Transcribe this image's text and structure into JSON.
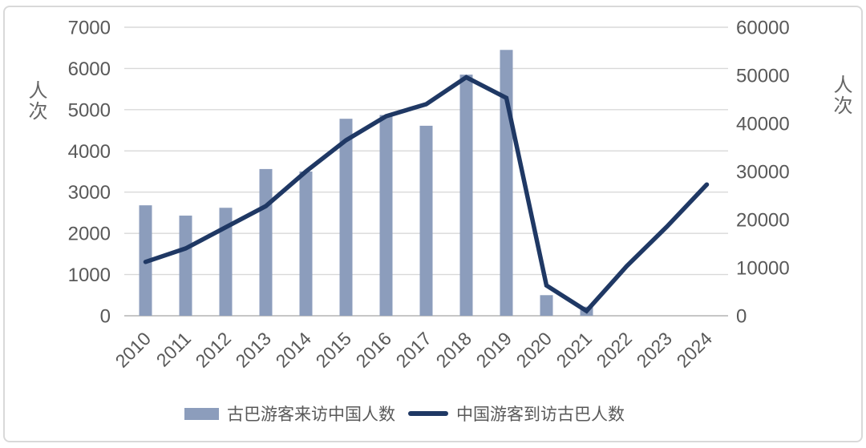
{
  "chart_data": {
    "type": "bar+line",
    "categories": [
      "2010",
      "2011",
      "2012",
      "2013",
      "2014",
      "2015",
      "2016",
      "2017",
      "2018",
      "2019",
      "2020",
      "2021",
      "2022",
      "2023",
      "2024"
    ],
    "series": [
      {
        "name": "古巴游客来访中国人数",
        "type": "bar",
        "axis": "left",
        "values": [
          2680,
          2430,
          2620,
          3560,
          3500,
          4780,
          4870,
          4610,
          5850,
          6450,
          500,
          220,
          null,
          null,
          null
        ]
      },
      {
        "name": "中国游客到访古巴人数",
        "type": "line",
        "axis": "right",
        "values": [
          11200,
          14000,
          18400,
          22800,
          30000,
          36500,
          41500,
          44000,
          49600,
          45300,
          6300,
          1000,
          10300,
          18500,
          27300
        ]
      }
    ],
    "left_axis": {
      "title": "人次",
      "min": 0,
      "max": 7000,
      "tick_step": 1000,
      "ticks": [
        0,
        1000,
        2000,
        3000,
        4000,
        5000,
        6000,
        7000
      ]
    },
    "right_axis": {
      "title": "人次",
      "min": 0,
      "max": 60000,
      "tick_step": 10000,
      "ticks": [
        0,
        10000,
        20000,
        30000,
        40000,
        50000,
        60000
      ]
    },
    "grid": true,
    "legend_position": "bottom",
    "title": ""
  },
  "colors": {
    "bar": "#8C9DBC",
    "line": "#1F3864",
    "grid": "#D9D9D9",
    "baseline": "#C6C6C6",
    "tick_text": "#595959",
    "axis_title_text": "#666666",
    "frame_border": "#D9D9D9",
    "background": "#FFFFFF"
  }
}
